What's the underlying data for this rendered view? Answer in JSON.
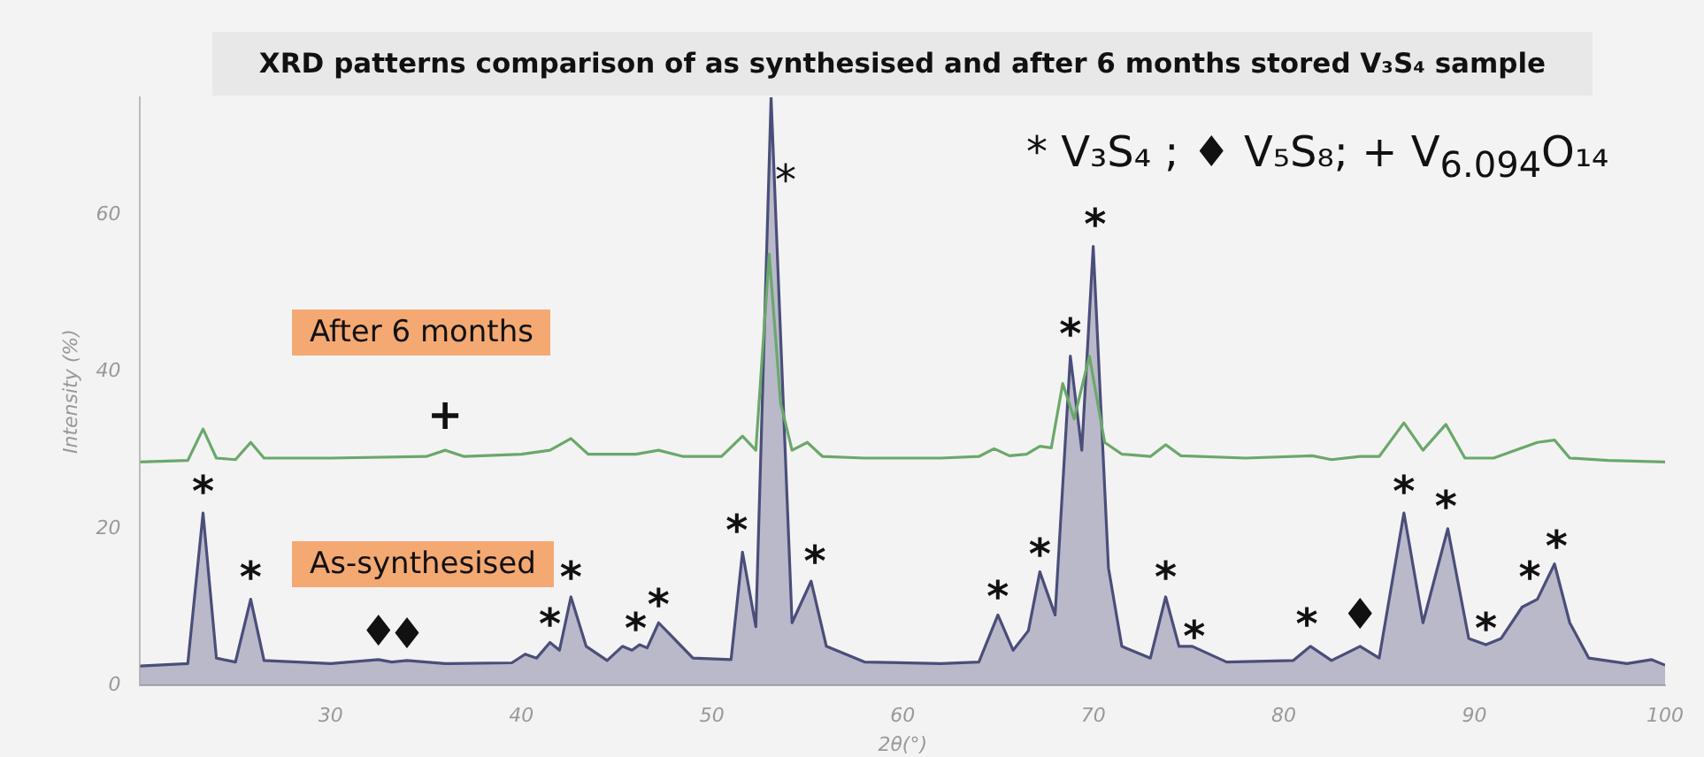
{
  "chart_data": {
    "type": "line",
    "title": "XRD patterns comparison of as synthesised and after 6 months stored V₃S₄ sample",
    "xlabel": "2θ(°)",
    "ylabel": "Intensity (%)",
    "xlim": [
      20,
      100
    ],
    "xticks": [
      30,
      40,
      50,
      60,
      70,
      80,
      90,
      100
    ],
    "ylim": [
      0,
      75
    ],
    "yticks": [
      0,
      20,
      40,
      60
    ],
    "grid": false,
    "legend": false,
    "marker": "none",
    "series": [
      {
        "type": "line",
        "color": "#6aa86a",
        "x": [
          20,
          22.5,
          23.3,
          24,
          25,
          25.8,
          26.5,
          30,
          35,
          36,
          37,
          40,
          41.5,
          42.6,
          43.5,
          46,
          47.2,
          48.5,
          50.5,
          51.6,
          52.3,
          53,
          53.6,
          54.2,
          55,
          55.8,
          58,
          62,
          64,
          64.8,
          65.6,
          66.5,
          67.2,
          67.8,
          68.4,
          69,
          69.8,
          70.6,
          71.5,
          73,
          73.8,
          74.6,
          78,
          81.5,
          82.5,
          84,
          85,
          86.3,
          87.3,
          88.5,
          89.5,
          91,
          93.3,
          94.2,
          95,
          97,
          100
        ],
        "values": [
          28.5,
          28.7,
          32.7,
          29,
          28.8,
          31,
          29,
          29,
          29.2,
          30,
          29.2,
          29.5,
          30,
          31.5,
          29.5,
          29.5,
          30,
          29.2,
          29.2,
          31.8,
          30,
          55,
          36,
          30,
          31,
          29.2,
          29,
          29,
          29.2,
          30.2,
          29.3,
          29.5,
          30.5,
          30.3,
          38.5,
          34,
          42,
          31,
          29.5,
          29.2,
          30.7,
          29.3,
          29,
          29.3,
          28.8,
          29.2,
          29.2,
          33.5,
          30,
          33.3,
          29,
          29,
          31,
          31.3,
          29,
          28.7,
          28.5
        ]
      },
      {
        "type": "area",
        "color": "#4a4e7a",
        "x": [
          20,
          22.5,
          23.3,
          24,
          25,
          25.8,
          26.5,
          30,
          32.5,
          33.2,
          34,
          36,
          39.5,
          40.2,
          40.8,
          41.5,
          42,
          42.6,
          43.4,
          44.5,
          45.3,
          45.8,
          46.2,
          46.6,
          47.2,
          48,
          49,
          51,
          51.6,
          52.3,
          53.1,
          54.2,
          55.2,
          56,
          58,
          62,
          64,
          65,
          65.8,
          66.6,
          67.2,
          68,
          68.8,
          69.4,
          70,
          70.8,
          71.5,
          73,
          73.8,
          74.5,
          75.2,
          77,
          80.5,
          81.4,
          82.5,
          84,
          85,
          86.3,
          87.3,
          88.6,
          89.7,
          90.6,
          91.4,
          92.5,
          93.3,
          94.2,
          95,
          96,
          98,
          99.3,
          100
        ],
        "values": [
          2.5,
          2.8,
          22,
          3.5,
          3,
          11,
          3.2,
          2.8,
          3.3,
          3,
          3.2,
          2.8,
          2.9,
          4,
          3.5,
          5.5,
          4.5,
          11.3,
          5,
          3.2,
          5,
          4.5,
          5.2,
          4.8,
          8,
          6,
          3.5,
          3.3,
          17,
          7.5,
          75,
          8,
          13.3,
          5,
          3,
          2.8,
          3,
          9,
          4.5,
          7,
          14.5,
          9,
          42,
          30,
          56,
          15,
          5,
          3.5,
          11.3,
          5,
          5,
          3,
          3.2,
          5,
          3.2,
          5,
          3.5,
          22,
          8,
          20,
          6,
          5.2,
          6,
          10,
          11,
          15.5,
          8,
          3.5,
          2.8,
          3.3,
          2.6
        ]
      }
    ],
    "annotations": [
      "After 6 months",
      "As-synthesised",
      "* V₃S₄ ; ♦ V₅S₈; + V$_{6.094}$O₁₄",
      "*",
      {
        "text": "*",
        "x": 23.3,
        "y": 23
      },
      {
        "text": "*",
        "x": 25.8,
        "y": 12
      },
      {
        "text": "♦",
        "x": 32.5,
        "y": 3.3
      },
      {
        "text": "♦",
        "x": 34,
        "y": 3
      },
      {
        "text": "+",
        "x": 36,
        "y": 31
      },
      {
        "text": "*",
        "x": 41.5,
        "y": 6
      },
      {
        "text": "*",
        "x": 42.6,
        "y": 12
      },
      {
        "text": "*",
        "x": 46,
        "y": 5.5
      },
      {
        "text": "*",
        "x": 47.2,
        "y": 8.5
      },
      {
        "text": "*",
        "x": 51.3,
        "y": 18
      },
      {
        "text": "*",
        "x": 55.4,
        "y": 14
      },
      {
        "text": "*",
        "x": 65,
        "y": 9.5
      },
      {
        "text": "*",
        "x": 67.2,
        "y": 15
      },
      {
        "text": "*",
        "x": 68.8,
        "y": 43
      },
      {
        "text": "*",
        "x": 70.1,
        "y": 57
      },
      {
        "text": "*",
        "x": 73.8,
        "y": 12
      },
      {
        "text": "*",
        "x": 75.3,
        "y": 4.5
      },
      {
        "text": "*",
        "x": 81.2,
        "y": 6
      },
      {
        "text": "♦",
        "x": 84,
        "y": 5.5
      },
      {
        "text": "*",
        "x": 86.3,
        "y": 23
      },
      {
        "text": "*",
        "x": 88.5,
        "y": 21
      },
      {
        "text": "*",
        "x": 90.6,
        "y": 5.5
      },
      {
        "text": "*",
        "x": 92.9,
        "y": 12
      },
      {
        "text": "*",
        "x": 94.3,
        "y": 16
      }
    ]
  }
}
